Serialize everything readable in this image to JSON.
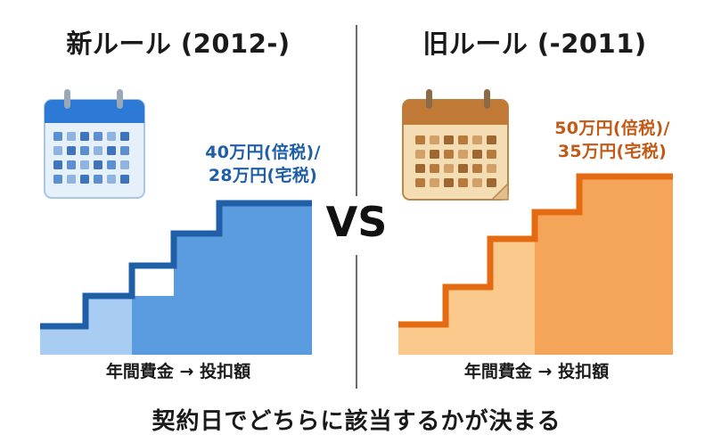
{
  "left": {
    "title": "新ルール (2012-)",
    "rate_line1": "40万円(倍税)/",
    "rate_line2": "28万円(宅税)",
    "caption": "年間費金 → 投扣額"
  },
  "right": {
    "title": "旧ルール (-2011)",
    "rate_line1": "50万円(倍税)/",
    "rate_line2": "35万円(宅税)",
    "caption": "年間費金 → 投扣額"
  },
  "vs_label": "VS",
  "footer": "契約日でどちらに該当するかが決まる",
  "colors": {
    "blue_dark": "#1f5fa8",
    "blue_mid": "#5b9be0",
    "blue_light": "#a9cdf2",
    "orange_dark": "#e56b13",
    "orange_mid": "#f5a55a",
    "orange_light": "#fbc98c"
  },
  "icons": {
    "left_calendar": "blue-calendar-icon",
    "right_calendar": "vintage-calendar-icon"
  }
}
